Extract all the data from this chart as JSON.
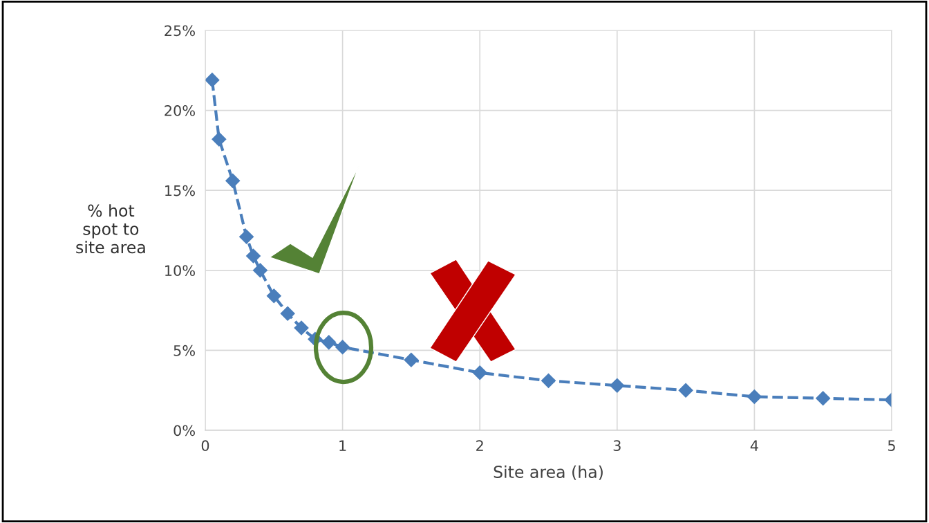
{
  "chart_data": {
    "type": "line",
    "xlabel": "Site area (ha)",
    "ylabel": "% hot\nspot to\nsite area",
    "x": [
      0.05,
      0.1,
      0.2,
      0.3,
      0.35,
      0.4,
      0.5,
      0.6,
      0.7,
      0.8,
      0.9,
      1.0,
      1.5,
      2,
      2.5,
      3,
      3.5,
      4,
      4.5,
      5
    ],
    "series": [
      {
        "color": "#4a7ebb",
        "values": [
          21.9,
          18.2,
          15.6,
          12.1,
          10.9,
          10.0,
          8.4,
          7.3,
          6.4,
          5.7,
          5.5,
          5.2,
          4.4,
          3.6,
          3.1,
          2.8,
          2.5,
          2.1,
          2.0,
          1.9
        ]
      }
    ],
    "xlim": [
      0,
      5
    ],
    "xticks": [
      0,
      1,
      2,
      3,
      4,
      5
    ],
    "ylim": [
      0,
      25
    ],
    "yticks": [
      {
        "value": 0,
        "label": "0%"
      },
      {
        "value": 5,
        "label": "5%"
      },
      {
        "value": 10,
        "label": "10%"
      },
      {
        "value": 15,
        "label": "15%"
      },
      {
        "value": 20,
        "label": "20%"
      },
      {
        "value": 25,
        "label": "25%"
      }
    ],
    "grid": true,
    "marker": "diamond",
    "line_style": "dashed"
  }
}
